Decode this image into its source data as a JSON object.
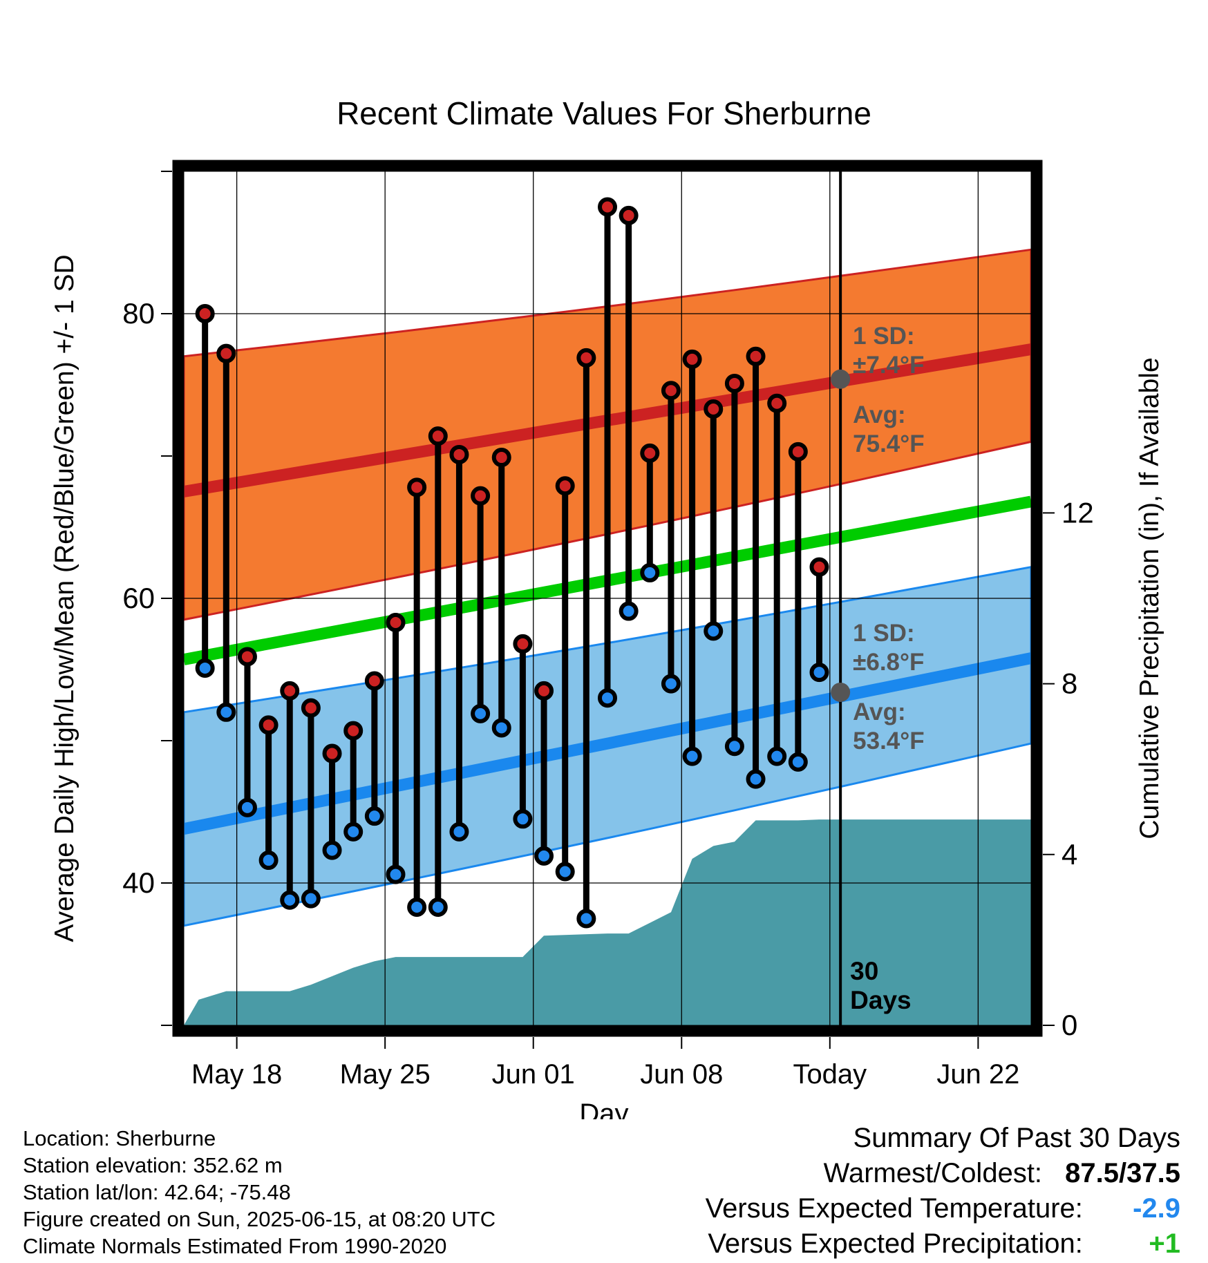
{
  "chart_data": {
    "type": "line",
    "title": "Recent Climate Values For Sherburne",
    "xlabel": "Day",
    "ylabel": "Average Daily High/Low/Mean (Red/Blue/Green) +/- 1 SD",
    "y2label": "Cumulative Precipitation (in), If Available",
    "x_ticks": [
      "May 18",
      "May 25",
      "Jun 01",
      "Jun 08",
      "Today",
      "Jun 22"
    ],
    "y_ticks": [
      "40",
      "60",
      "80"
    ],
    "y2_ticks": [
      "0",
      "4",
      "8",
      "12"
    ],
    "ylim": [
      30,
      90
    ],
    "y2lim": [
      0,
      20
    ],
    "xlim_days": [
      0,
      40
    ],
    "grid": true,
    "today_day": 31,
    "days_label": "30\nDays",
    "series": [
      {
        "name": "High",
        "color": "#cc2222",
        "values": [
          80.0,
          77.2,
          55.9,
          51.1,
          53.5,
          52.3,
          49.1,
          50.7,
          54.2,
          58.3,
          67.8,
          71.4,
          70.1,
          67.2,
          69.9,
          56.8,
          53.5,
          67.9,
          76.9,
          87.5,
          86.9,
          70.2,
          74.6,
          76.8,
          73.3,
          75.1,
          77.0,
          73.7,
          70.3,
          62.2
        ]
      },
      {
        "name": "Low",
        "color": "#2288ee",
        "values": [
          55.1,
          52.0,
          45.3,
          41.6,
          38.8,
          38.9,
          42.3,
          43.6,
          44.7,
          40.6,
          38.3,
          38.3,
          43.6,
          51.9,
          50.9,
          44.5,
          41.9,
          40.8,
          37.5,
          53.0,
          59.1,
          61.8,
          54.0,
          48.9,
          57.7,
          49.6,
          47.3,
          48.9,
          48.5,
          54.8
        ]
      }
    ],
    "normals": {
      "high_avg": [
        67.5,
        77.5
      ],
      "high_sd_band": [
        [
          58.5,
          77.0
        ],
        [
          71.0,
          84.5
        ]
      ],
      "low_avg": [
        43.8,
        55.8
      ],
      "low_sd_band": [
        [
          37.0,
          52.0
        ],
        [
          49.8,
          62.2
        ]
      ],
      "mean_avg": [
        55.7,
        66.8
      ]
    },
    "precip_cumulative": [
      [
        0,
        0.0
      ],
      [
        0.7,
        0.6
      ],
      [
        2,
        0.8
      ],
      [
        5,
        0.8
      ],
      [
        6,
        0.95
      ],
      [
        7.5,
        1.25
      ],
      [
        8,
        1.35
      ],
      [
        9,
        1.5
      ],
      [
        10,
        1.6
      ],
      [
        16,
        1.6
      ],
      [
        17,
        2.1
      ],
      [
        20,
        2.15
      ],
      [
        21,
        2.15
      ],
      [
        22,
        2.4
      ],
      [
        23,
        2.65
      ],
      [
        24,
        3.9
      ],
      [
        25,
        4.2
      ],
      [
        26,
        4.3
      ],
      [
        27,
        4.8
      ],
      [
        29,
        4.8
      ],
      [
        30,
        4.82
      ],
      [
        31,
        4.82
      ],
      [
        40,
        4.82
      ]
    ],
    "precip_color": "#4a9ba6",
    "annotations": {
      "high_sd": "1 SD:",
      "high_sd_value": "±7.4°F",
      "high_avg": "Avg:",
      "high_avg_value": "75.4°F",
      "low_sd": "1 SD:",
      "low_sd_value": "±6.8°F",
      "low_avg": "Avg:",
      "low_avg_value": "53.4°F"
    }
  },
  "info": {
    "location": "Location: Sherburne",
    "elevation": "Station elevation: 352.62 m",
    "latlon": "Station lat/lon: 42.64; -75.48",
    "created": "Figure created on Sun, 2025-06-15, at 08:20 UTC",
    "normals": "Climate Normals Estimated From 1990-2020"
  },
  "summary": {
    "title": "Summary Of Past 30 Days",
    "warm_label": "Warmest/Coldest:",
    "warm_value": "87.5/37.5",
    "temp_label": "Versus Expected Temperature:",
    "temp_value": "-2.9",
    "temp_color": "#2288ee",
    "precip_label": "Versus Expected Precipitation:",
    "precip_value": "+1",
    "precip_color": "#22bb22"
  }
}
